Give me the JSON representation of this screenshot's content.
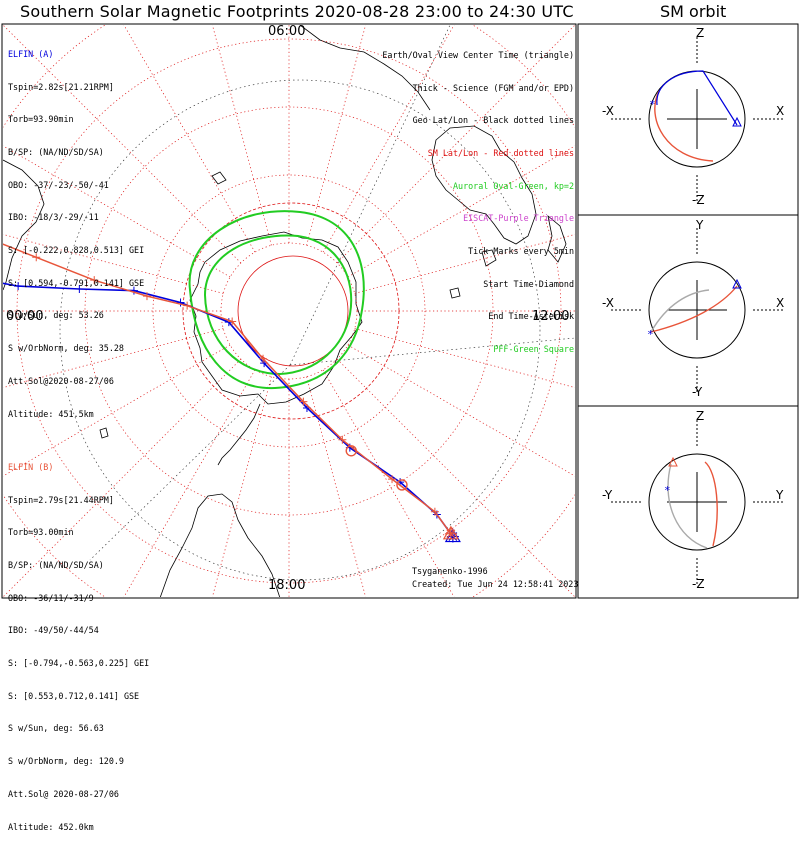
{
  "title": "Southern Solar Magnetic Footprints 2020-08-28 23:00 to 24:30 UTC",
  "orbit_title": "SM orbit",
  "colors": {
    "elfin_a": "#0000dd",
    "elfin_b": "#e8553a",
    "oval": "#22cc22",
    "grid": "#dd1111",
    "geo": "#222222",
    "land": "#000000"
  },
  "hour_labels": {
    "top": "06:00",
    "left": "00:00",
    "right": "12:00",
    "bottom": "18:00"
  },
  "elfin_a": {
    "name": "ELFIN (A)",
    "lines": [
      "Tspin=2.82s[21.21RPM]",
      "Torb=93.90min",
      "B/SP: (NA/ND/SD/SA)",
      "OBO: -37/-23/-50/-41",
      "IBO: -18/3/-29/-11",
      "S: [-0.222,0.828,0.513] GEI",
      "S: [0.594,-0.791,0.141] GSE",
      "S w/Sun, deg: 53.26",
      "S w/OrbNorm, deg: 35.28",
      "Att.Sol@2020-08-27/06",
      "Altitude: 451.5km"
    ]
  },
  "elfin_b": {
    "name": "ELFIN (B)",
    "lines": [
      "Tspin=2.79s[21.44RPM]",
      "Torb=93.00min",
      "B/SP: (NA/ND/SD/SA)",
      "OBO: -36/11/-31/9",
      "IBO: -49/50/-44/54",
      "S: [-0.794,-0.563,0.225] GEI",
      "S: [0.553,0.712,0.141] GSE",
      "S w/Sun, deg: 56.63",
      "S w/OrbNorm, deg: 120.9",
      "Att.Sol@ 2020-08-27/06",
      "Altitude: 452.0km"
    ]
  },
  "legend": [
    {
      "text": "Earth/Oval View Center Time (triangle)",
      "color": "#000000"
    },
    {
      "text": "Thick - Science (FGM and/or EPD)",
      "color": "#000000"
    },
    {
      "text": "Geo Lat/Lon - Black dotted lines",
      "color": "#000000"
    },
    {
      "text": "SM Lat/Lon - Red dotted lines",
      "color": "#dd1111"
    },
    {
      "text": "Auroral Oval-Green, kp=2",
      "color": "#22cc22"
    },
    {
      "text": "EISCAT-Purple Triangle",
      "color": "#cc44cc"
    },
    {
      "text": "Tick Marks every 5min",
      "color": "#000000"
    },
    {
      "text": "Start Time-Diamond",
      "color": "#000000"
    },
    {
      "text": "End Time-Asterisk",
      "color": "#000000"
    },
    {
      "text": "PFF-Green Square",
      "color": "#22cc22"
    }
  ],
  "credit": {
    "author": "Tsyganenko-1996",
    "created": "Created: Tue Jun 24 12:58:41 2023"
  },
  "orbit_panels": [
    {
      "top": "Z",
      "bottom": "-Z",
      "left": "-X",
      "right": "X"
    },
    {
      "top": "Y",
      "bottom": "-Y",
      "left": "-X",
      "right": "X"
    },
    {
      "top": "Z",
      "bottom": "-Z",
      "left": "-Y",
      "right": "Y"
    }
  ],
  "chart_data": {
    "type": "polar-map",
    "projection": "southern SM polar view, magnetic local time around the edge",
    "sm_latitude_rings_deg": [
      -80,
      -70,
      -60,
      -50,
      -40,
      -30,
      -20
    ],
    "mlt_meridians_hours": [
      0,
      1,
      2,
      3,
      4,
      5,
      6,
      7,
      8,
      9,
      10,
      11,
      12,
      13,
      14,
      15,
      16,
      17,
      18,
      19,
      20,
      21,
      22,
      23
    ],
    "kp": 2,
    "tick_interval_min": 5,
    "series": [
      {
        "name": "ELFIN (A)",
        "color": "#0000dd",
        "track": [
          {
            "mlt": 0.6,
            "colat": 53.0
          },
          {
            "mlt": 0.4,
            "colat": 47.0
          },
          {
            "mlt": 0.35,
            "colat": 40.0
          },
          {
            "mlt": 0.4,
            "colat": 31.0
          },
          {
            "mlt": 0.5,
            "colat": 23.0
          },
          {
            "mlt": 0.3,
            "colat": 16.0
          },
          {
            "mlt": 23.3,
            "colat": 9.0
          },
          {
            "mlt": 19.7,
            "colat": 8.5
          },
          {
            "mlt": 17.3,
            "colat": 14.5
          },
          {
            "mlt": 16.4,
            "colat": 22.0
          },
          {
            "mlt": 15.8,
            "colat": 30.0
          },
          {
            "mlt": 15.6,
            "colat": 37.0
          },
          {
            "mlt": 15.6,
            "colat": 41.0
          }
        ]
      },
      {
        "name": "ELFIN (B)",
        "color": "#e8553a",
        "track": [
          {
            "mlt": 1.1,
            "colat": 51.0
          },
          {
            "mlt": 0.9,
            "colat": 45.0
          },
          {
            "mlt": 0.8,
            "colat": 38.0
          },
          {
            "mlt": 0.6,
            "colat": 29.0
          },
          {
            "mlt": 0.4,
            "colat": 21.0
          },
          {
            "mlt": 0.2,
            "colat": 15.0
          },
          {
            "mlt": 23.3,
            "colat": 8.5
          },
          {
            "mlt": 19.9,
            "colat": 8.0
          },
          {
            "mlt": 17.4,
            "colat": 13.5
          },
          {
            "mlt": 16.5,
            "colat": 20.5
          },
          {
            "mlt": 15.9,
            "colat": 29.0
          },
          {
            "mlt": 15.6,
            "colat": 36.5
          },
          {
            "mlt": 15.6,
            "colat": 40.5
          }
        ]
      }
    ]
  }
}
